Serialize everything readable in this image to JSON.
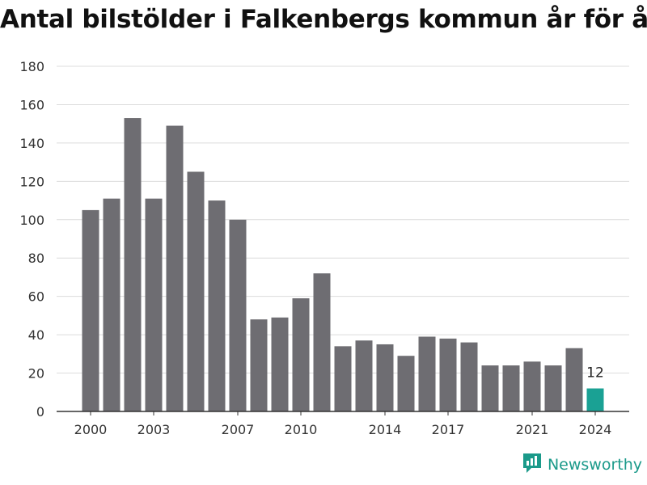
{
  "chart_data": {
    "type": "bar",
    "title": "Antal bilstölder i Falkenbergs kommun år för år",
    "categories": [
      "2000",
      "2001",
      "2002",
      "2003",
      "2004",
      "2005",
      "2006",
      "2007",
      "2008",
      "2009",
      "2010",
      "2011",
      "2012",
      "2013",
      "2014",
      "2015",
      "2016",
      "2017",
      "2018",
      "2019",
      "2020",
      "2021",
      "2022",
      "2023",
      "2024"
    ],
    "values": [
      105,
      111,
      153,
      111,
      149,
      125,
      110,
      100,
      48,
      49,
      59,
      72,
      34,
      37,
      35,
      29,
      39,
      38,
      36,
      24,
      24,
      26,
      24,
      33,
      12
    ],
    "x_tick_labels": [
      "2000",
      "2003",
      "2007",
      "2010",
      "2014",
      "2017",
      "2021",
      "2024"
    ],
    "y_ticks": [
      0,
      20,
      40,
      60,
      80,
      100,
      120,
      140,
      160,
      180
    ],
    "ylim": [
      0,
      180
    ],
    "xlabel": "",
    "ylabel": "",
    "grid": true,
    "highlight": {
      "category": "2024",
      "label": "12"
    },
    "colors": {
      "bar": "#6e6d72",
      "highlight": "#1aa194",
      "grid": "#dcdcdc",
      "axis": "#333333",
      "text": "#333333"
    }
  },
  "brand": {
    "name": "Newsworthy",
    "icon": "newsworthy-logo-icon"
  }
}
